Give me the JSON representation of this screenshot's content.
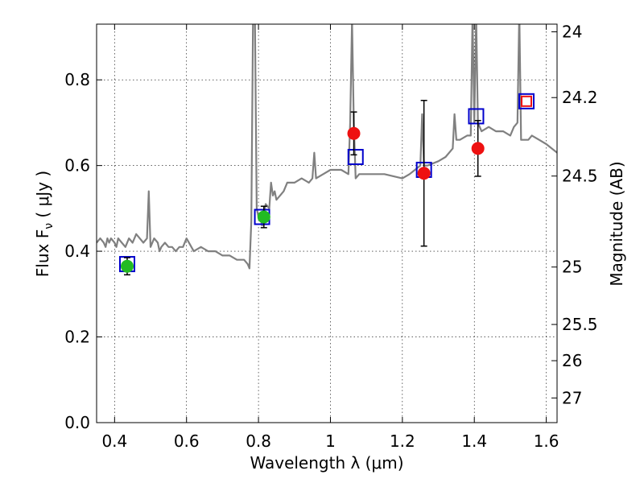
{
  "chart_data": {
    "type": "scatter",
    "xlabel": "Wavelength  λ (μm)",
    "ylabel": "Flux  F",
    "ylabel_sub": "ν",
    "ylabel_unit": " ( μJy )",
    "y2label": "Magnitude (AB)",
    "xlim": [
      0.35,
      1.63
    ],
    "ylim": [
      0.0,
      0.93
    ],
    "grid": true,
    "x_ticks": [
      {
        "v": 0.4,
        "label": "0.4"
      },
      {
        "v": 0.6,
        "label": "0.6"
      },
      {
        "v": 0.8,
        "label": "0.8"
      },
      {
        "v": 1.0,
        "label": "1"
      },
      {
        "v": 1.2,
        "label": "1.2"
      },
      {
        "v": 1.4,
        "label": "1.4"
      },
      {
        "v": 1.6,
        "label": "1.6"
      }
    ],
    "y_ticks": [
      {
        "v": 0.0,
        "label": "0.0"
      },
      {
        "v": 0.2,
        "label": "0.2"
      },
      {
        "v": 0.4,
        "label": "0.4"
      },
      {
        "v": 0.6,
        "label": "0.6"
      },
      {
        "v": 0.8,
        "label": "0.8"
      }
    ],
    "y2_ticks": [
      {
        "mag": 24.0,
        "label": "24"
      },
      {
        "mag": 24.2,
        "label": "24.2"
      },
      {
        "mag": 24.5,
        "label": "24.5"
      },
      {
        "mag": 25.0,
        "label": "25"
      },
      {
        "mag": 25.5,
        "label": "25.5"
      },
      {
        "mag": 26.0,
        "label": "26"
      },
      {
        "mag": 27.0,
        "label": "27"
      }
    ],
    "series": [
      {
        "kind": "spectrum",
        "color": "#808080",
        "x": [
          0.35,
          0.36,
          0.37,
          0.375,
          0.38,
          0.385,
          0.39,
          0.4,
          0.405,
          0.41,
          0.42,
          0.43,
          0.44,
          0.45,
          0.46,
          0.47,
          0.48,
          0.49,
          0.495,
          0.5,
          0.51,
          0.52,
          0.525,
          0.53,
          0.54,
          0.55,
          0.56,
          0.57,
          0.58,
          0.59,
          0.6,
          0.62,
          0.64,
          0.66,
          0.68,
          0.7,
          0.72,
          0.74,
          0.76,
          0.77,
          0.775,
          0.78,
          0.785,
          0.79,
          0.795,
          0.8,
          0.805,
          0.81,
          0.82,
          0.83,
          0.835,
          0.84,
          0.845,
          0.85,
          0.86,
          0.87,
          0.88,
          0.9,
          0.92,
          0.94,
          0.95,
          0.955,
          0.96,
          0.98,
          1.0,
          1.03,
          1.05,
          1.055,
          1.06,
          1.065,
          1.07,
          1.08,
          1.1,
          1.15,
          1.2,
          1.22,
          1.25,
          1.255,
          1.26,
          1.27,
          1.3,
          1.32,
          1.34,
          1.345,
          1.35,
          1.36,
          1.38,
          1.39,
          1.395,
          1.4,
          1.405,
          1.41,
          1.42,
          1.44,
          1.46,
          1.48,
          1.5,
          1.51,
          1.52,
          1.525,
          1.53,
          1.54,
          1.55,
          1.56,
          1.58,
          1.6,
          1.63
        ],
        "y": [
          0.42,
          0.43,
          0.42,
          0.41,
          0.43,
          0.42,
          0.43,
          0.42,
          0.41,
          0.43,
          0.42,
          0.41,
          0.43,
          0.42,
          0.44,
          0.43,
          0.42,
          0.43,
          0.54,
          0.41,
          0.43,
          0.42,
          0.4,
          0.41,
          0.42,
          0.41,
          0.41,
          0.4,
          0.41,
          0.41,
          0.43,
          0.4,
          0.41,
          0.4,
          0.4,
          0.39,
          0.39,
          0.38,
          0.38,
          0.37,
          0.36,
          0.47,
          0.96,
          0.96,
          0.5,
          0.48,
          0.48,
          0.46,
          0.51,
          0.5,
          0.56,
          0.53,
          0.54,
          0.52,
          0.53,
          0.54,
          0.56,
          0.56,
          0.57,
          0.56,
          0.57,
          0.63,
          0.57,
          0.58,
          0.59,
          0.59,
          0.58,
          0.7,
          0.94,
          0.7,
          0.57,
          0.58,
          0.58,
          0.58,
          0.57,
          0.58,
          0.6,
          0.72,
          0.6,
          0.6,
          0.61,
          0.62,
          0.64,
          0.72,
          0.66,
          0.66,
          0.67,
          0.67,
          0.95,
          0.7,
          0.95,
          0.7,
          0.68,
          0.69,
          0.68,
          0.68,
          0.67,
          0.69,
          0.7,
          0.96,
          0.66,
          0.66,
          0.66,
          0.67,
          0.66,
          0.65,
          0.63
        ]
      },
      {
        "kind": "model",
        "marker": "open-square",
        "color": "#0000cc",
        "points": [
          {
            "x": 0.435,
            "y": 0.37
          },
          {
            "x": 0.81,
            "y": 0.48
          },
          {
            "x": 1.07,
            "y": 0.62
          },
          {
            "x": 1.26,
            "y": 0.59
          },
          {
            "x": 1.405,
            "y": 0.715
          },
          {
            "x": 1.545,
            "y": 0.75
          }
        ]
      },
      {
        "kind": "observed",
        "marker": "filled-circle",
        "color": "#22bb22",
        "points": [
          {
            "x": 0.435,
            "y": 0.365,
            "err": 0.02
          },
          {
            "x": 0.815,
            "y": 0.48,
            "err": 0.025
          }
        ]
      },
      {
        "kind": "observed",
        "marker": "filled-circle",
        "color": "#ee1111",
        "points": [
          {
            "x": 1.065,
            "y": 0.675,
            "err": 0.05
          },
          {
            "x": 1.26,
            "y": 0.582,
            "err": 0.17
          },
          {
            "x": 1.41,
            "y": 0.64,
            "err": 0.065
          }
        ]
      },
      {
        "kind": "observed",
        "marker": "open-square",
        "color": "#ee1111",
        "points": [
          {
            "x": 1.545,
            "y": 0.75
          }
        ]
      }
    ]
  }
}
